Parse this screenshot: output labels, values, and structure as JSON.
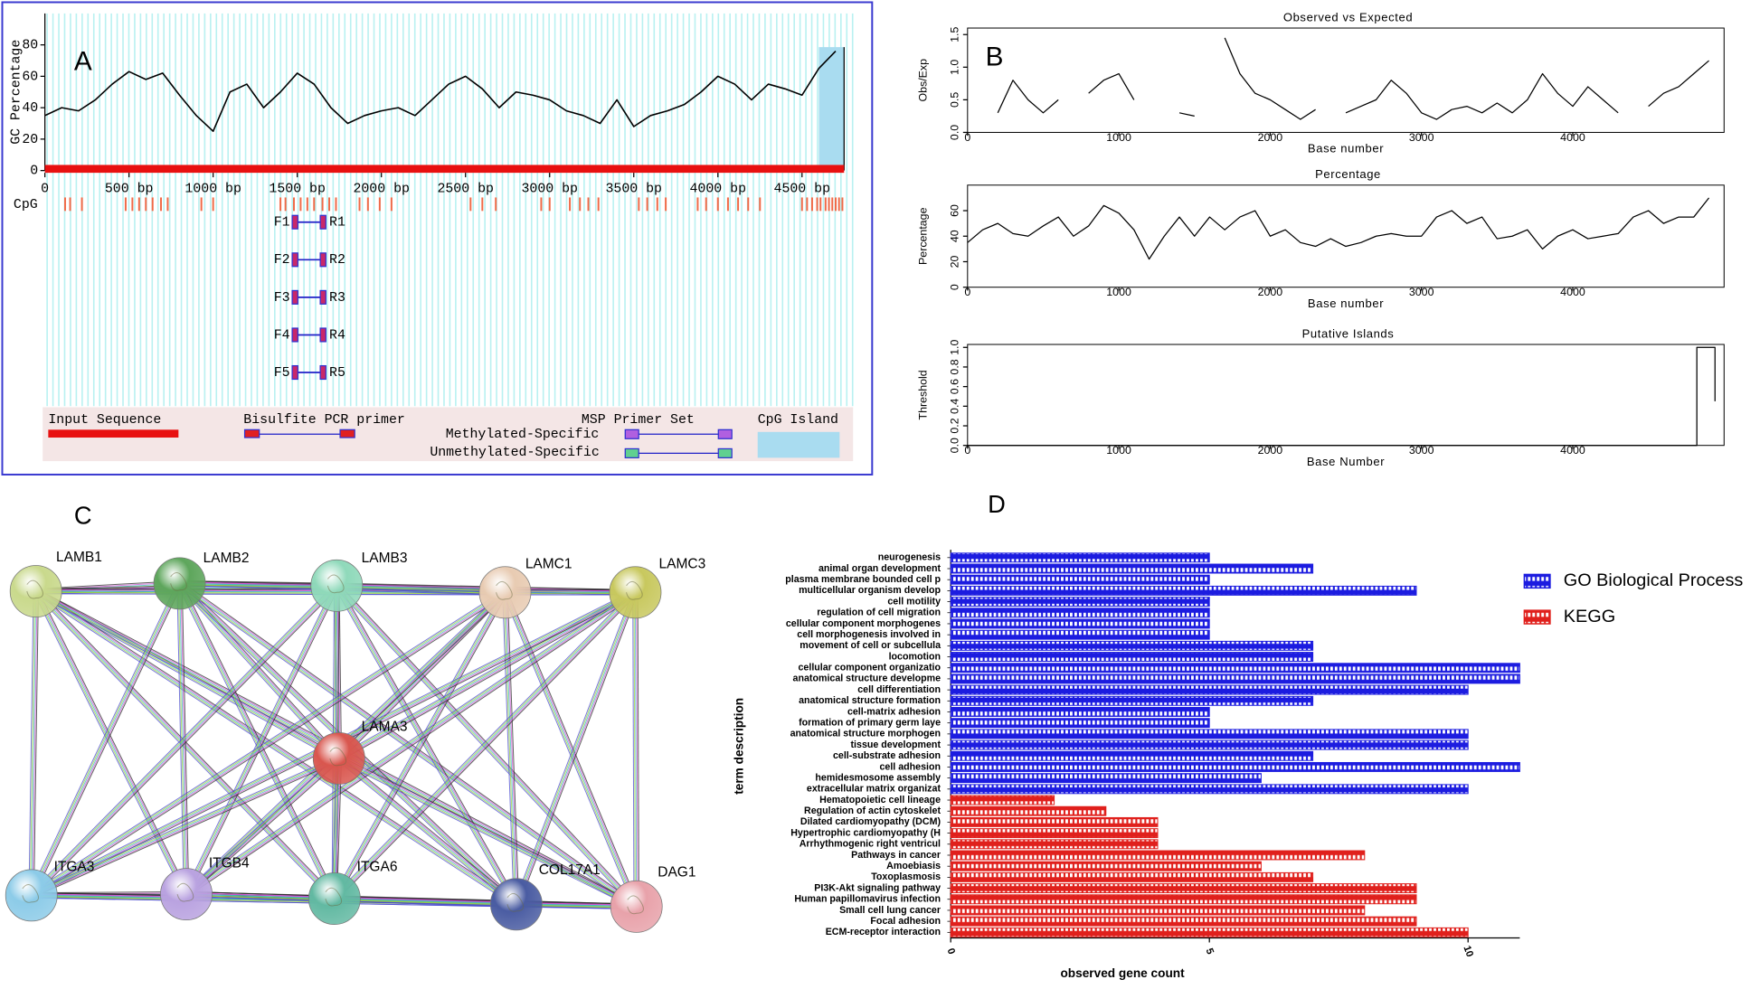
{
  "chart_data": [
    {
      "type": "cpg_map",
      "label": "A",
      "ylabel": "GC Percentage",
      "color": "#000000",
      "xlim": [
        0,
        4750
      ],
      "xticks": [
        0,
        {
          "value": 500,
          "label": "500 bp"
        },
        {
          "value": 1000,
          "label": "1000 bp"
        },
        {
          "value": 1500,
          "label": "1500 bp"
        },
        {
          "value": 2000,
          "label": "2000 bp"
        },
        {
          "value": 2500,
          "label": "2500 bp"
        },
        {
          "value": 3000,
          "label": "3000 bp"
        },
        {
          "value": 3500,
          "label": "3500 bp"
        },
        {
          "value": 4000,
          "label": "4000 bp"
        },
        {
          "value": 4500,
          "label": "4500 bp"
        }
      ],
      "ylim": [
        0,
        100
      ],
      "yticks": [
        0,
        20,
        40,
        60,
        80
      ],
      "x": [
        0,
        100,
        200,
        300,
        400,
        500,
        600,
        700,
        800,
        900,
        1000,
        1100,
        1200,
        1300,
        1400,
        1500,
        1600,
        1700,
        1800,
        1900,
        2000,
        2100,
        2200,
        2300,
        2400,
        2500,
        2600,
        2700,
        2800,
        2900,
        3000,
        3100,
        3200,
        3300,
        3400,
        3500,
        3600,
        3700,
        3800,
        3900,
        4000,
        4100,
        4200,
        4300,
        4400,
        4500,
        4600,
        4700
      ],
      "values": [
        35,
        40,
        38,
        45,
        55,
        63,
        58,
        62,
        48,
        35,
        25,
        50,
        55,
        40,
        50,
        62,
        55,
        40,
        30,
        35,
        38,
        40,
        35,
        45,
        55,
        60,
        52,
        40,
        50,
        48,
        45,
        38,
        35,
        30,
        45,
        28,
        35,
        38,
        42,
        50,
        60,
        55,
        45,
        55,
        52,
        48,
        65,
        76
      ],
      "track_label": "CpG",
      "cpg_sites": [
        120,
        150,
        220,
        480,
        520,
        560,
        600,
        640,
        690,
        730,
        930,
        1000,
        1400,
        1430,
        1480,
        1520,
        1560,
        1600,
        1650,
        1690,
        1730,
        1870,
        1920,
        1990,
        2060,
        2530,
        2600,
        2680,
        2950,
        3000,
        3120,
        3180,
        3230,
        3290,
        3530,
        3580,
        3640,
        3690,
        3880,
        3930,
        4000,
        4060,
        4120,
        4180,
        4250,
        4500,
        4530,
        4560,
        4590,
        4610,
        4640,
        4660,
        4680,
        4700,
        4720,
        4740
      ],
      "primers": [
        {
          "forward": "F1",
          "reverse": "R1",
          "start": 1470,
          "end": 1670
        },
        {
          "forward": "F2",
          "reverse": "R2",
          "start": 1470,
          "end": 1670
        },
        {
          "forward": "F3",
          "reverse": "R3",
          "start": 1470,
          "end": 1670
        },
        {
          "forward": "F4",
          "reverse": "R4",
          "start": 1470,
          "end": 1670
        },
        {
          "forward": "F5",
          "reverse": "R5",
          "start": 1470,
          "end": 1670
        }
      ],
      "cpg_island": [
        4600,
        4750
      ],
      "legend": {
        "input_sequence": "Input Sequence",
        "bisulfite": "Bisulfite PCR primer",
        "msp": "MSP Primer Set",
        "methylated": "Methylated-Specific",
        "unmethylated": "Unmethylated-Specific",
        "island": "CpG Island"
      }
    },
    {
      "type": "line",
      "label": "B",
      "title": "Observed vs Expected",
      "ylabel": "Obs/Exp",
      "xlabel": "Base number",
      "color": "#000000",
      "xlim": [
        0,
        5000
      ],
      "xticks": [
        0,
        1000,
        2000,
        3000,
        4000
      ],
      "ylim": [
        0,
        1.6
      ],
      "yticks": [
        {
          "value": 0,
          "label": "0.0"
        },
        {
          "value": 0.5,
          "label": "0.5"
        },
        {
          "value": 1,
          "label": "1.0"
        },
        {
          "value": 1.5,
          "label": "1.5"
        }
      ],
      "x": [
        0,
        100,
        200,
        300,
        400,
        500,
        600,
        700,
        800,
        900,
        1000,
        1100,
        1200,
        1300,
        1400,
        1500,
        1600,
        1700,
        1800,
        1900,
        2000,
        2100,
        2200,
        2300,
        2400,
        2500,
        2600,
        2700,
        2800,
        2900,
        3000,
        3100,
        3200,
        3300,
        3400,
        3500,
        3600,
        3700,
        3800,
        3900,
        4000,
        4100,
        4200,
        4300,
        4400,
        4500,
        4600,
        4700,
        4800,
        4900
      ],
      "values": [
        null,
        null,
        0.3,
        0.8,
        0.5,
        0.3,
        0.5,
        null,
        0.6,
        0.8,
        0.9,
        0.5,
        null,
        null,
        0.3,
        0.25,
        null,
        1.45,
        0.9,
        0.6,
        0.5,
        0.35,
        0.2,
        0.35,
        null,
        0.3,
        0.4,
        0.5,
        0.8,
        0.6,
        0.3,
        0.2,
        0.35,
        0.4,
        0.3,
        0.45,
        0.3,
        0.5,
        0.9,
        0.6,
        0.4,
        0.7,
        0.5,
        0.3,
        null,
        0.4,
        0.6,
        0.7,
        0.9,
        1.1
      ]
    },
    {
      "type": "line",
      "title": "Percentage",
      "ylabel": "Percentage",
      "xlabel": "Base number",
      "color": "#000000",
      "xlim": [
        0,
        5000
      ],
      "xticks": [
        0,
        1000,
        2000,
        3000,
        4000
      ],
      "ylim": [
        0,
        80
      ],
      "yticks": [
        0,
        20,
        40,
        60
      ],
      "x": [
        0,
        100,
        200,
        300,
        400,
        500,
        600,
        700,
        800,
        900,
        1000,
        1100,
        1200,
        1300,
        1400,
        1500,
        1600,
        1700,
        1800,
        1900,
        2000,
        2100,
        2200,
        2300,
        2400,
        2500,
        2600,
        2700,
        2800,
        2900,
        3000,
        3100,
        3200,
        3300,
        3400,
        3500,
        3600,
        3700,
        3800,
        3900,
        4000,
        4100,
        4200,
        4300,
        4400,
        4500,
        4600,
        4700,
        4800,
        4900
      ],
      "values": [
        35,
        45,
        50,
        42,
        40,
        48,
        55,
        40,
        48,
        64,
        58,
        45,
        22,
        40,
        55,
        40,
        55,
        45,
        55,
        60,
        40,
        45,
        35,
        32,
        38,
        32,
        35,
        40,
        42,
        40,
        40,
        55,
        60,
        50,
        55,
        38,
        40,
        45,
        30,
        40,
        45,
        38,
        40,
        42,
        55,
        60,
        50,
        55,
        55,
        70
      ]
    },
    {
      "type": "line",
      "title": "Putative Islands",
      "ylabel": "Threshold",
      "xlabel": "Base Number",
      "color": "#000000",
      "xlim": [
        0,
        5000
      ],
      "xticks": [
        0,
        1000,
        2000,
        3000,
        4000
      ],
      "ylim": [
        0,
        1.03
      ],
      "yticks": [
        {
          "value": 0,
          "label": "0.0"
        },
        {
          "value": 0.2,
          "label": "0.2"
        },
        {
          "value": 0.4,
          "label": "0.4"
        },
        {
          "value": 0.6,
          "label": "0.6"
        },
        {
          "value": 0.8,
          "label": "0.8"
        },
        {
          "value": 1,
          "label": "1.0"
        }
      ],
      "x": [
        0,
        4820,
        4820,
        4940,
        4940
      ],
      "values": [
        0,
        0,
        1,
        1,
        0.45
      ]
    },
    {
      "type": "network",
      "label": "C",
      "nodes": [
        {
          "name": "LAMB1",
          "color": "#c9d98c"
        },
        {
          "name": "LAMB2",
          "color": "#5ea65c"
        },
        {
          "name": "LAMB3",
          "color": "#8fd9ba"
        },
        {
          "name": "LAMC1",
          "color": "#e8cbb2"
        },
        {
          "name": "LAMC3",
          "color": "#c8c85e"
        },
        {
          "name": "LAMA3",
          "color": "#d9564e"
        },
        {
          "name": "ITGA3",
          "color": "#8ccbe8"
        },
        {
          "name": "ITGB4",
          "color": "#b9a2e0"
        },
        {
          "name": "ITGA6",
          "color": "#62b9a2"
        },
        {
          "name": "COL17A1",
          "color": "#4a5ca2"
        },
        {
          "name": "DAG1",
          "color": "#e8a2aa"
        }
      ]
    },
    {
      "type": "bar",
      "label": "D",
      "xlabel": "observed gene count",
      "ylabel": "term description",
      "legend": "right",
      "xlim": [
        0,
        11
      ],
      "xticks": [
        0,
        5,
        10
      ],
      "categories": [
        "neurogenesis",
        "animal organ development",
        "plasma membrane bounded cell p",
        "multicellular organism develop",
        "cell motility",
        "regulation of cell migration",
        "cellular component morphogenes",
        "cell morphogenesis involved in",
        "movement of cell or subcellula",
        "locomotion",
        "cellular component organizatio",
        "anatomical structure developme",
        "cell differentiation",
        "anatomical structure formation",
        "cell-matrix adhesion",
        "formation of primary germ laye",
        "anatomical structure morphogen",
        "tissue development",
        "cell-substrate adhesion",
        "cell adhesion",
        "hemidesmosome assembly",
        "extracellular matrix organizat",
        "Hematopoietic cell lineage",
        "Regulation of actin cytoskelet",
        "Dilated cardiomyopathy (DCM)",
        "Hypertrophic cardiomyopathy (H",
        "Arrhythmogenic right ventricul",
        "Pathways in cancer",
        "Amoebiasis",
        "Toxoplasmosis",
        "PI3K-Akt signaling pathway",
        "Human papillomavirus infection",
        "Small cell lung cancer",
        "Focal adhesion",
        "ECM-receptor interaction"
      ],
      "series": [
        {
          "name": "GO Biological Process",
          "color": "#1c1ce0",
          "values": [
            5,
            7,
            5,
            9,
            5,
            5,
            5,
            5,
            7,
            7,
            11,
            11,
            10,
            7,
            5,
            5,
            10,
            10,
            7,
            11,
            6,
            10,
            null,
            null,
            null,
            null,
            null,
            null,
            null,
            null,
            null,
            null,
            null,
            null,
            null
          ]
        },
        {
          "name": "KEGG",
          "color": "#e0201c",
          "values": [
            null,
            null,
            null,
            null,
            null,
            null,
            null,
            null,
            null,
            null,
            null,
            null,
            null,
            null,
            null,
            null,
            null,
            null,
            null,
            null,
            null,
            null,
            2,
            3,
            4,
            4,
            4,
            8,
            6,
            7,
            9,
            9,
            8,
            9,
            10
          ]
        }
      ]
    }
  ]
}
